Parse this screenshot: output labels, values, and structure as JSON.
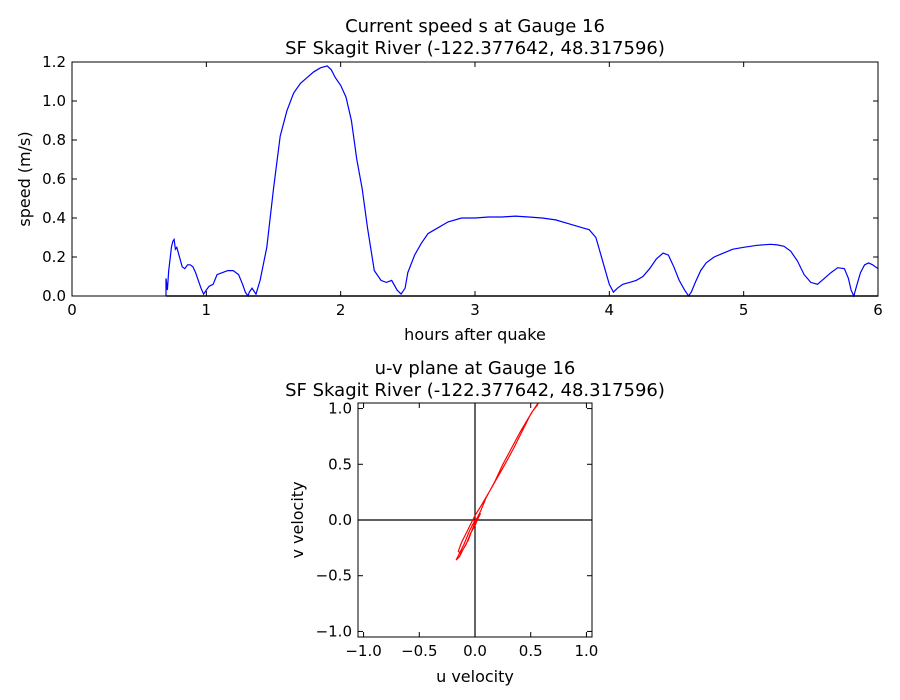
{
  "chart_data": [
    {
      "type": "line",
      "title_line1": "Current speed s at Gauge 16",
      "title_line2": "SF Skagit River  (-122.377642, 48.317596)",
      "xlabel": "hours after quake",
      "ylabel": "speed (m/s)",
      "xlim": [
        0,
        6
      ],
      "ylim": [
        0,
        1.2
      ],
      "xticks": [
        "0",
        "1",
        "2",
        "3",
        "4",
        "5",
        "6"
      ],
      "yticks": [
        "0.0",
        "0.2",
        "0.4",
        "0.6",
        "0.8",
        "1.0",
        "1.2"
      ],
      "grid": false,
      "series": [
        {
          "color": "#0000ff",
          "x": [
            0.7,
            0.7,
            0.71,
            0.72,
            0.73,
            0.74,
            0.75,
            0.76,
            0.77,
            0.78,
            0.8,
            0.82,
            0.84,
            0.86,
            0.88,
            0.9,
            0.92,
            0.94,
            0.96,
            0.98,
            1.0,
            1.02,
            1.05,
            1.08,
            1.12,
            1.16,
            1.2,
            1.24,
            1.27,
            1.29,
            1.31,
            1.32,
            1.34,
            1.37,
            1.4,
            1.45,
            1.5,
            1.55,
            1.6,
            1.65,
            1.7,
            1.75,
            1.8,
            1.85,
            1.9,
            1.93,
            1.96,
            2.0,
            2.04,
            2.08,
            2.12,
            2.16,
            2.2,
            2.25,
            2.3,
            2.34,
            2.38,
            2.42,
            2.45,
            2.48,
            2.5,
            2.55,
            2.6,
            2.65,
            2.7,
            2.8,
            2.9,
            3.0,
            3.1,
            3.2,
            3.3,
            3.4,
            3.5,
            3.6,
            3.7,
            3.8,
            3.85,
            3.9,
            3.95,
            4.0,
            4.03,
            4.06,
            4.1,
            4.15,
            4.2,
            4.25,
            4.3,
            4.35,
            4.4,
            4.44,
            4.48,
            4.52,
            4.56,
            4.59,
            4.61,
            4.64,
            4.68,
            4.72,
            4.78,
            4.85,
            4.92,
            5.0,
            5.1,
            5.2,
            5.25,
            5.3,
            5.35,
            5.4,
            5.45,
            5.5,
            5.55,
            5.6,
            5.65,
            5.7,
            5.75,
            5.78,
            5.8,
            5.82,
            5.84,
            5.87,
            5.9,
            5.93,
            5.96,
            6.0
          ],
          "y": [
            0.0,
            0.09,
            0.03,
            0.13,
            0.19,
            0.25,
            0.28,
            0.29,
            0.24,
            0.25,
            0.2,
            0.15,
            0.14,
            0.16,
            0.16,
            0.15,
            0.12,
            0.08,
            0.04,
            0.01,
            0.03,
            0.05,
            0.06,
            0.11,
            0.12,
            0.13,
            0.13,
            0.11,
            0.06,
            0.02,
            0.0,
            0.02,
            0.04,
            0.01,
            0.08,
            0.25,
            0.55,
            0.82,
            0.95,
            1.04,
            1.09,
            1.12,
            1.15,
            1.17,
            1.18,
            1.16,
            1.12,
            1.08,
            1.02,
            0.9,
            0.7,
            0.55,
            0.35,
            0.13,
            0.08,
            0.07,
            0.08,
            0.03,
            0.01,
            0.04,
            0.12,
            0.21,
            0.27,
            0.32,
            0.34,
            0.38,
            0.4,
            0.4,
            0.405,
            0.405,
            0.41,
            0.405,
            0.4,
            0.39,
            0.37,
            0.35,
            0.34,
            0.3,
            0.18,
            0.06,
            0.02,
            0.04,
            0.06,
            0.07,
            0.08,
            0.1,
            0.14,
            0.19,
            0.22,
            0.21,
            0.15,
            0.08,
            0.03,
            0.0,
            0.02,
            0.07,
            0.13,
            0.17,
            0.2,
            0.22,
            0.24,
            0.25,
            0.26,
            0.265,
            0.262,
            0.255,
            0.23,
            0.18,
            0.11,
            0.07,
            0.06,
            0.09,
            0.12,
            0.145,
            0.14,
            0.09,
            0.03,
            0.0,
            0.05,
            0.12,
            0.16,
            0.17,
            0.16,
            0.14
          ]
        },
        {
          "color": "#000000",
          "x": [
            0.7,
            6.0
          ],
          "y": [
            0.0,
            0.0
          ]
        }
      ]
    },
    {
      "type": "line",
      "title_line1": "u-v plane at Gauge 16",
      "title_line2": "SF Skagit River  (-122.377642, 48.317596)",
      "xlabel": "u velocity",
      "ylabel": "v velocity",
      "xlim": [
        -1.05,
        1.05
      ],
      "ylim": [
        -1.05,
        1.05
      ],
      "xticks": [
        "−1.0",
        "−0.5",
        "0.0",
        "0.5",
        "1.0"
      ],
      "yticks": [
        "−1.0",
        "−0.5",
        "0.0",
        "0.5",
        "1.0"
      ],
      "grid": false,
      "series": [
        {
          "color": "#ff0000",
          "u": [
            0.0,
            -0.05,
            -0.1,
            -0.15,
            -0.17,
            -0.14,
            -0.1,
            -0.06,
            -0.03,
            0.0,
            0.05,
            0.1,
            0.18,
            0.25,
            0.33,
            0.4,
            0.47,
            0.52,
            0.56,
            0.57,
            0.56,
            0.5,
            0.45,
            0.4,
            0.35,
            0.28,
            0.2,
            0.12,
            0.05,
            0.0,
            -0.04,
            -0.08,
            -0.12,
            -0.15,
            -0.13,
            -0.08,
            -0.04,
            0.0,
            0.03,
            0.05,
            0.02,
            -0.01,
            0.0
          ],
          "v": [
            0.0,
            -0.1,
            -0.22,
            -0.32,
            -0.36,
            -0.33,
            -0.25,
            -0.18,
            -0.1,
            -0.02,
            0.08,
            0.2,
            0.35,
            0.5,
            0.65,
            0.78,
            0.9,
            0.98,
            1.03,
            1.06,
            1.04,
            0.95,
            0.85,
            0.75,
            0.65,
            0.52,
            0.38,
            0.24,
            0.12,
            0.04,
            -0.04,
            -0.12,
            -0.2,
            -0.28,
            -0.3,
            -0.22,
            -0.12,
            -0.05,
            0.02,
            0.06,
            0.02,
            -0.02,
            0.0
          ]
        }
      ]
    }
  ]
}
